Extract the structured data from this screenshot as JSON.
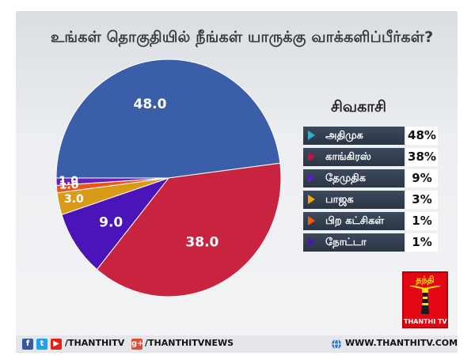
{
  "question": "உங்கள் தொகுதியில் நீங்கள் யாருக்கு வாக்களிப்பீர்கள்?",
  "legend": {
    "title": "சிவகாசி",
    "items": [
      {
        "label": "அதிமுக",
        "value": "48%",
        "arrow_color": "#2bb3d6"
      },
      {
        "label": "காங்கிரஸ்",
        "value": "38%",
        "arrow_color": "#c8103e"
      },
      {
        "label": "தேமுதிக",
        "value": "9%",
        "arrow_color": "#5a1ed0"
      },
      {
        "label": "பாஜக",
        "value": "3%",
        "arrow_color": "#f2a800"
      },
      {
        "label": "பிற கட்சிகள்",
        "value": "1%",
        "arrow_color": "#ff5a00"
      },
      {
        "label": "நோட்டா",
        "value": "1%",
        "arrow_color": "#4a18b0"
      }
    ]
  },
  "chart_data": {
    "type": "pie",
    "title": "",
    "slices": [
      {
        "label": "அதிமுக",
        "value": 48.0,
        "display": "48.0",
        "color": "#3a5fa8"
      },
      {
        "label": "காங்கிரஸ்",
        "value": 38.0,
        "display": "38.0",
        "color": "#c8243f"
      },
      {
        "label": "தேமுதிக",
        "value": 9.0,
        "display": "9.0",
        "color": "#4b14b8"
      },
      {
        "label": "பாஜக",
        "value": 3.0,
        "display": "3.0",
        "color": "#d99a17"
      },
      {
        "label": "பிற கட்சிகள்",
        "value": 1.0,
        "display": "1.0",
        "color": "#e8561a"
      },
      {
        "label": "நோட்டா",
        "value": 1.0,
        "display": "1.0",
        "color": "#6a1fb4"
      }
    ]
  },
  "footer": {
    "social_left": "/THANTHITV",
    "social_mid": "/THANTHITVNEWS",
    "website": "WWW.THANTHITV.COM",
    "icons": {
      "facebook": "f",
      "twitter": "t",
      "youtube": "▶",
      "gplus": "g+"
    }
  },
  "logo": {
    "top_text": "தந்தி",
    "bottom_text": "THANTHI TV"
  }
}
